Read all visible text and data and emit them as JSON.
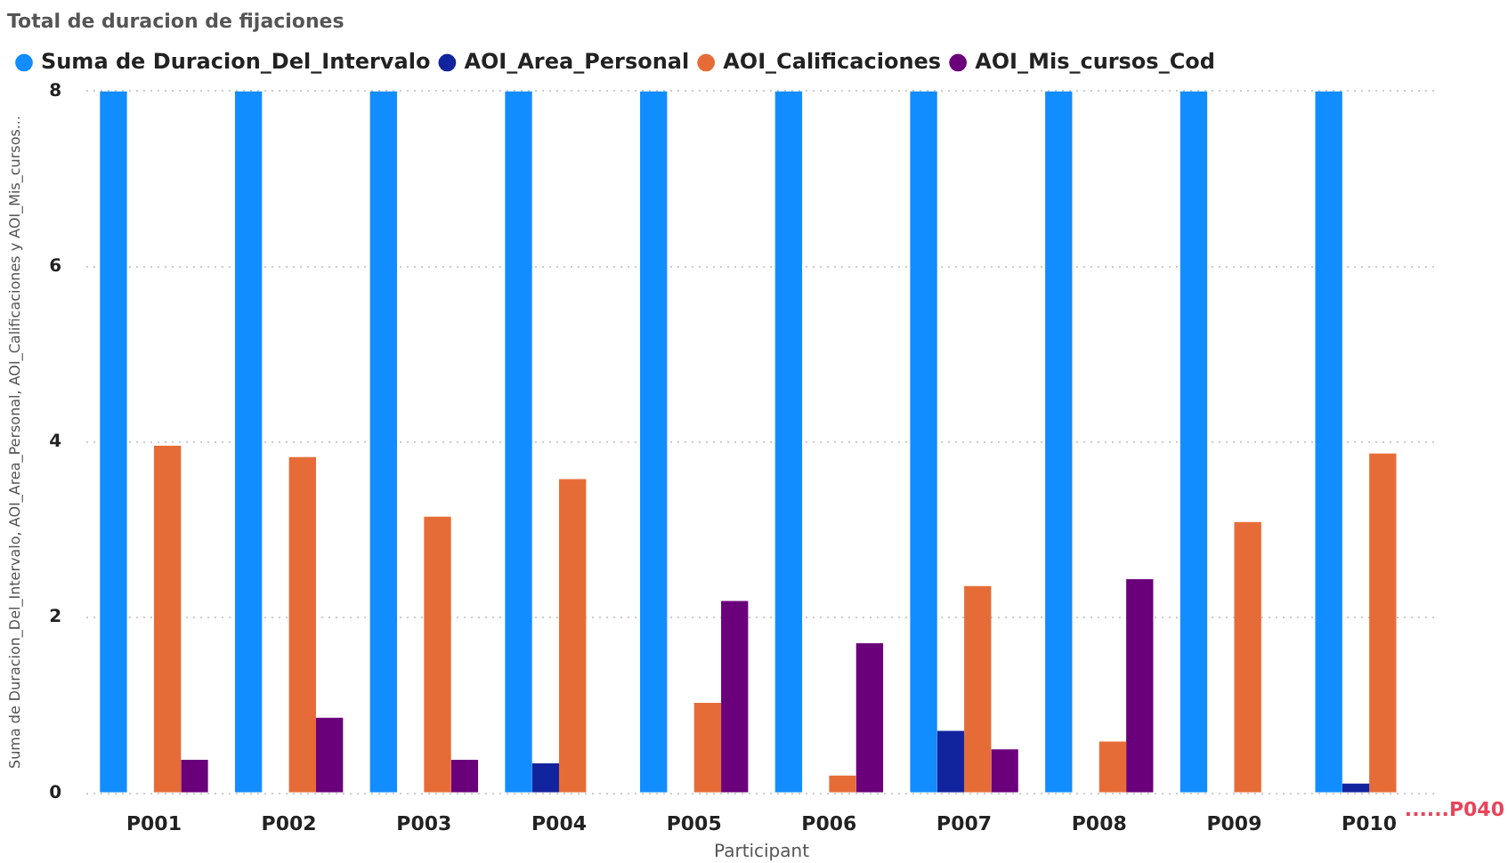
{
  "chart_data": {
    "type": "bar",
    "title": "Total de duracion de fijaciones",
    "xlabel": "Participant",
    "ylabel": "Suma de Duracion_Del_Intervalo, AOI_Area_Personal, AOI_Calificaciones y AOI_Mis_cursos...",
    "categories": [
      "P001",
      "P002",
      "P003",
      "P004",
      "P005",
      "P006",
      "P007",
      "P008",
      "P009",
      "P010"
    ],
    "series": [
      {
        "name": "Suma de Duracion_Del_Intervalo",
        "color": "#118dff",
        "values": [
          8,
          8,
          8,
          8,
          8,
          8,
          8,
          8,
          8,
          8
        ]
      },
      {
        "name": "AOI_Area_Personal",
        "color": "#12239e",
        "values": [
          null,
          null,
          null,
          0.34,
          null,
          null,
          0.71,
          null,
          null,
          0.11
        ]
      },
      {
        "name": "AOI_Calificaciones",
        "color": "#e66c37",
        "values": [
          3.96,
          3.83,
          3.15,
          3.58,
          1.03,
          0.2,
          2.36,
          0.59,
          3.09,
          3.87
        ]
      },
      {
        "name": "AOI_Mis_cursos_Cod",
        "color": "#6b007b",
        "values": [
          0.38,
          0.86,
          0.38,
          null,
          2.19,
          1.71,
          0.5,
          2.44,
          null,
          null
        ]
      }
    ],
    "ylim": [
      0,
      8
    ],
    "yticks": [
      0,
      2,
      4,
      6,
      8
    ],
    "grid": "y",
    "legend": "top left",
    "marker": "circle",
    "annotations": [
      "......P040"
    ]
  }
}
